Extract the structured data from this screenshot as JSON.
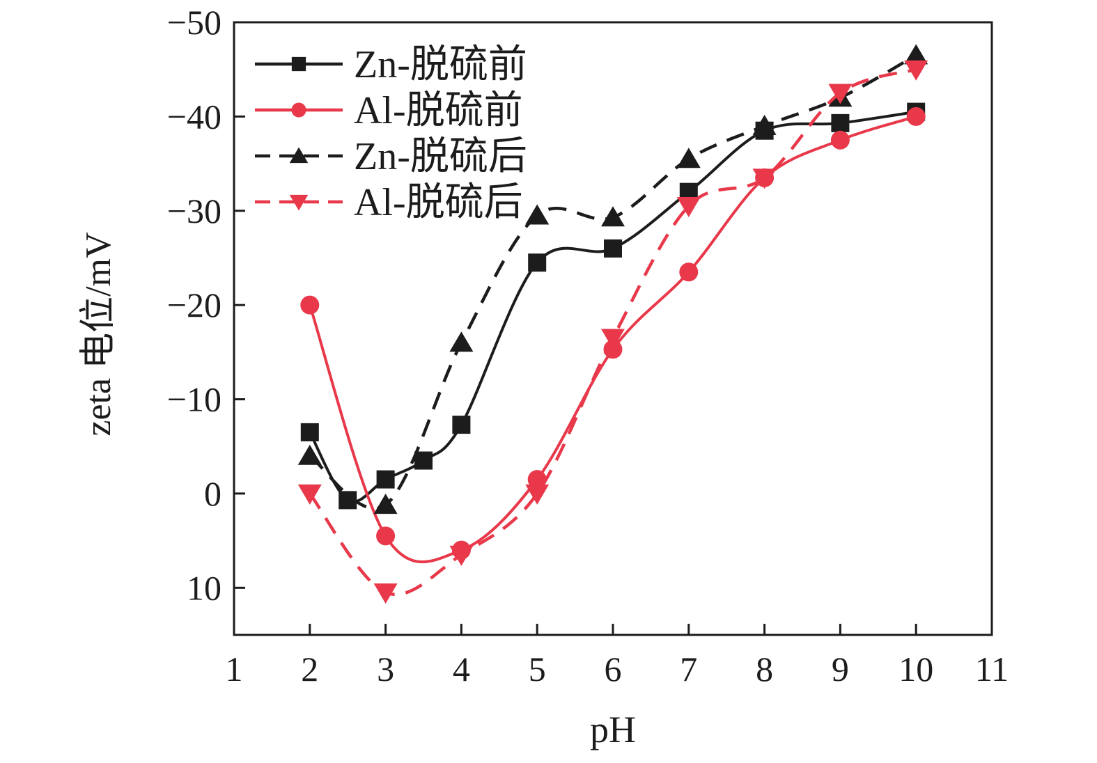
{
  "chart_data": {
    "type": "line",
    "title": "",
    "xlabel": "pH",
    "ylabel": "zeta 电位/mV",
    "x_ticks": [
      1,
      2,
      3,
      4,
      5,
      6,
      7,
      8,
      9,
      10,
      11
    ],
    "y_ticks": [
      -50,
      -40,
      -30,
      -20,
      -10,
      0,
      10
    ],
    "xlim": [
      1,
      11
    ],
    "ylim": [
      -50,
      15
    ],
    "y_axis_inverted": true,
    "grid": false,
    "legend_position": "top-left-inside",
    "axis_color": "#1c1c1c",
    "series": [
      {
        "name": "Zn-脱硫前",
        "color": "#1c1c1c",
        "line": "solid",
        "marker": "square",
        "points": [
          [
            2,
            -6.5
          ],
          [
            2.5,
            0.7
          ],
          [
            3,
            -1.5
          ],
          [
            3.5,
            -3.5
          ],
          [
            4,
            -7.3
          ],
          [
            5,
            -24.5
          ],
          [
            6,
            -26
          ],
          [
            7,
            -32
          ],
          [
            8,
            -38.5
          ],
          [
            9,
            -39.3
          ],
          [
            10,
            -40.5
          ]
        ]
      },
      {
        "name": "Al-脱硫前",
        "color": "#e8384a",
        "line": "solid",
        "marker": "circle",
        "points": [
          [
            2,
            -20
          ],
          [
            3,
            4.5
          ],
          [
            4,
            6
          ],
          [
            5,
            -1.5
          ],
          [
            6,
            -15.3
          ],
          [
            7,
            -23.5
          ],
          [
            8,
            -33.5
          ],
          [
            9,
            -37.5
          ],
          [
            10,
            -40
          ]
        ]
      },
      {
        "name": "Zn-脱硫后",
        "color": "#1c1c1c",
        "line": "dashed",
        "marker": "triangle-up",
        "points": [
          [
            2,
            -4
          ],
          [
            3,
            1.2
          ],
          [
            4,
            -16
          ],
          [
            5,
            -29.5
          ],
          [
            6,
            -29.3
          ],
          [
            7,
            -35.5
          ],
          [
            8,
            -39
          ],
          [
            9,
            -42
          ],
          [
            10,
            -46.5
          ]
        ]
      },
      {
        "name": "Al-脱硫后",
        "color": "#e8384a",
        "line": "dashed",
        "marker": "triangle-down",
        "points": [
          [
            2,
            0
          ],
          [
            3,
            10.5
          ],
          [
            4,
            6.5
          ],
          [
            5,
            0
          ],
          [
            6,
            -16.5
          ],
          [
            7,
            -30.5
          ],
          [
            8,
            -33.5
          ],
          [
            9,
            -42.5
          ],
          [
            10,
            -45
          ]
        ]
      }
    ]
  }
}
